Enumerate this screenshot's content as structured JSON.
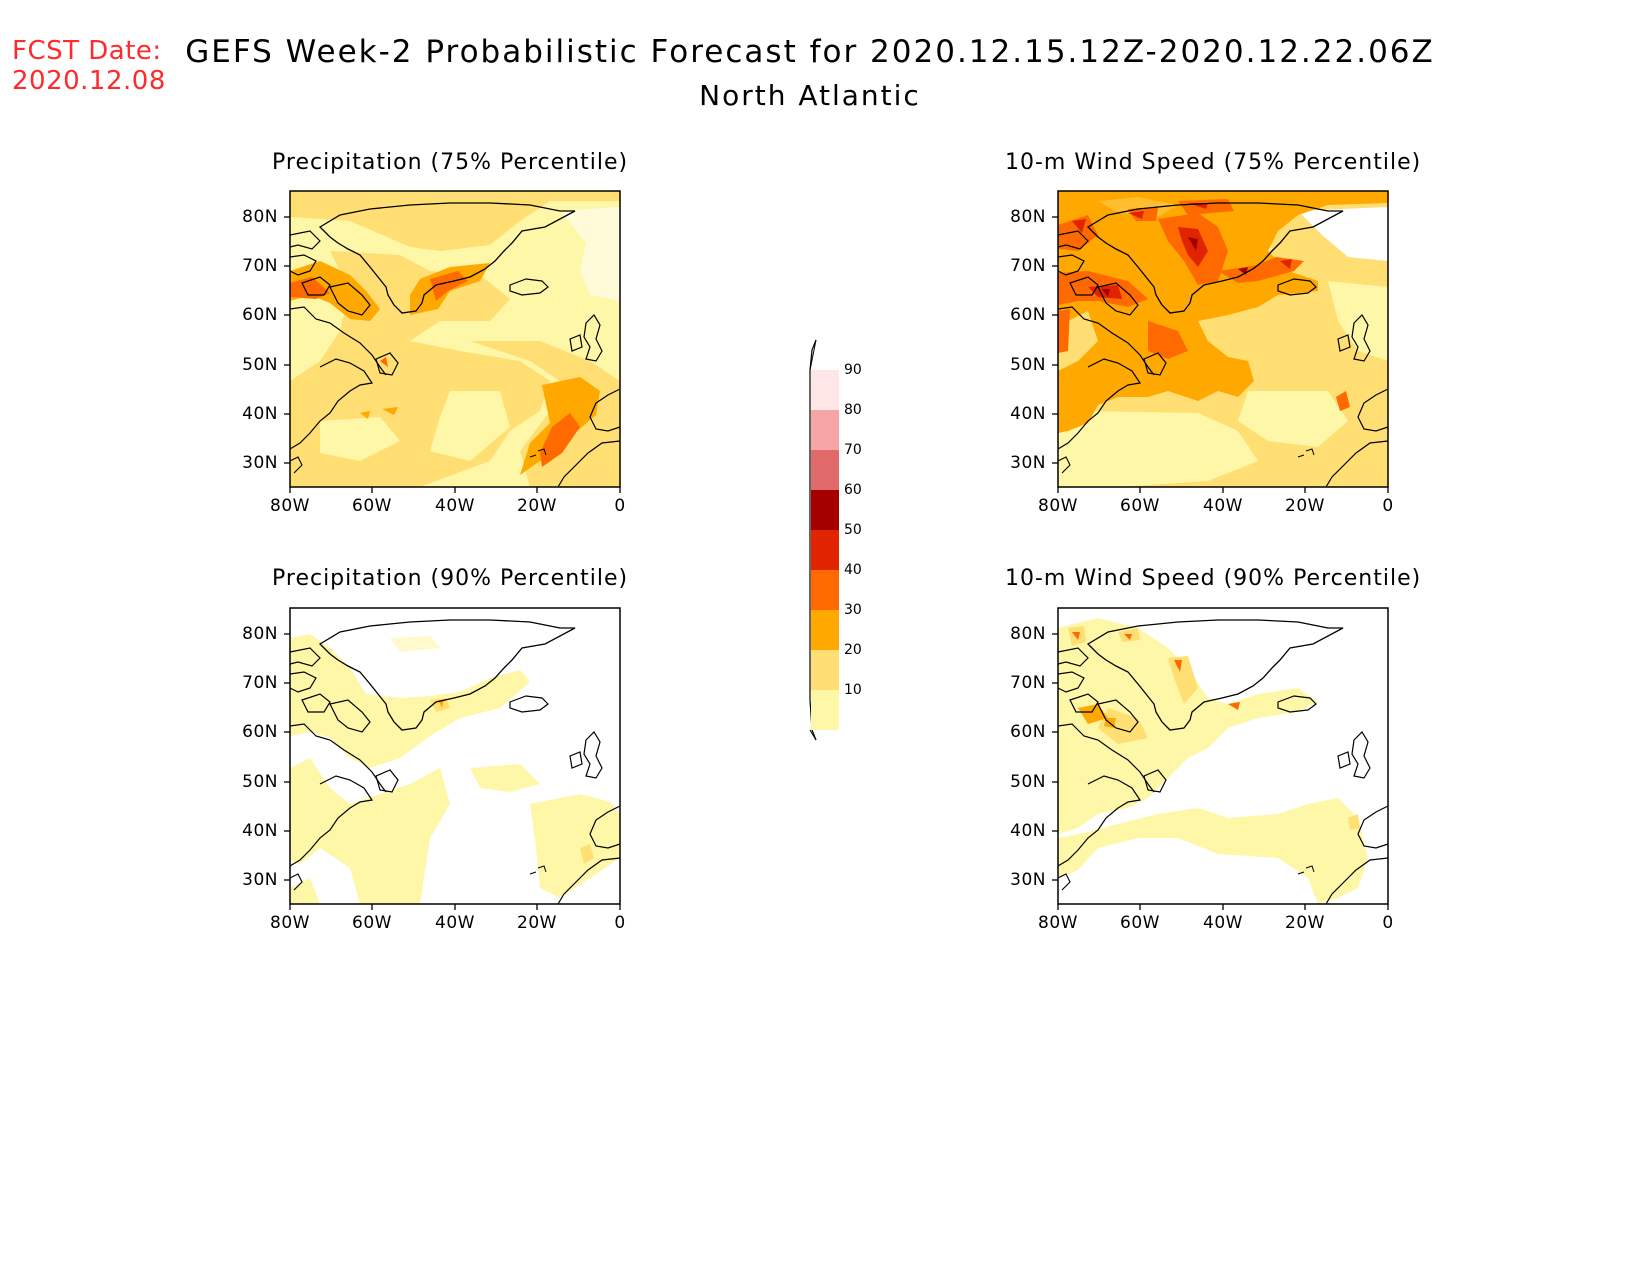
{
  "header": {
    "fcst_label": "FCST Date:",
    "fcst_date": "2020.12.08",
    "title": "GEFS Week-2 Probabilistic Forecast for 2020.12.15.12Z-2020.12.22.06Z",
    "subtitle": "North Atlantic"
  },
  "panels": [
    {
      "id": "precip75",
      "title": "Precipitation (75% Percentile)"
    },
    {
      "id": "wind75",
      "title": "10-m Wind Speed (75% Percentile)"
    },
    {
      "id": "precip90",
      "title": "Precipitation (90% Percentile)"
    },
    {
      "id": "wind90",
      "title": "10-m Wind Speed (90% Percentile)"
    }
  ],
  "axes": {
    "lat_labels": [
      "80N",
      "70N",
      "60N",
      "50N",
      "40N",
      "30N"
    ],
    "lon_labels": [
      "80W",
      "60W",
      "40W",
      "20W",
      "0"
    ]
  },
  "colorbar": {
    "levels": [
      "90",
      "80",
      "70",
      "60",
      "50",
      "40",
      "30",
      "20",
      "10"
    ],
    "colors": {
      "10-20": "#fff7a8",
      "20-30": "#ffdf73",
      "30-40": "#ffa800",
      "40-50": "#ff6a00",
      "50-60": "#e12400",
      "60-70": "#a50000",
      "70-80": "#e06a6a",
      "80-90": "#f5a5a5",
      "90+": "#ffe6e6"
    }
  }
}
